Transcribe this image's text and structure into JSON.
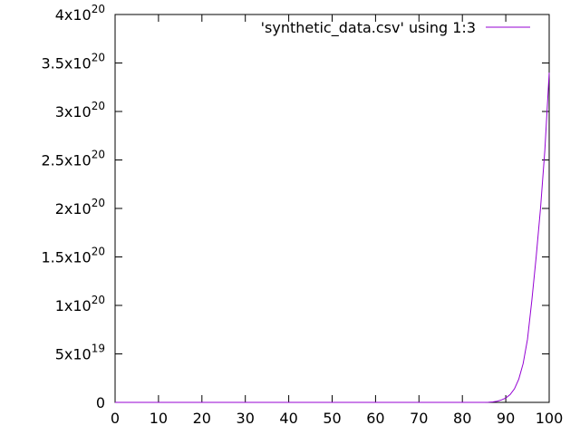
{
  "chart_data": {
    "type": "line",
    "title": "",
    "xlabel": "",
    "ylabel": "",
    "xlim": [
      0,
      100
    ],
    "ylim": [
      0,
      4e+20
    ],
    "x_ticks": [
      {
        "value": 0,
        "label": "0"
      },
      {
        "value": 10,
        "label": "10"
      },
      {
        "value": 20,
        "label": "20"
      },
      {
        "value": 30,
        "label": "30"
      },
      {
        "value": 40,
        "label": "40"
      },
      {
        "value": 50,
        "label": "50"
      },
      {
        "value": 60,
        "label": "60"
      },
      {
        "value": 70,
        "label": "70"
      },
      {
        "value": 80,
        "label": "80"
      },
      {
        "value": 90,
        "label": "90"
      },
      {
        "value": 100,
        "label": "100"
      }
    ],
    "y_ticks": [
      {
        "value": 0,
        "mantissa": "0",
        "exponent": ""
      },
      {
        "value": 5e+19,
        "mantissa": "5x10",
        "exponent": "19"
      },
      {
        "value": 1e+20,
        "mantissa": "1x10",
        "exponent": "20"
      },
      {
        "value": 1.5e+20,
        "mantissa": "1.5x10",
        "exponent": "20"
      },
      {
        "value": 2e+20,
        "mantissa": "2x10",
        "exponent": "20"
      },
      {
        "value": 2.5e+20,
        "mantissa": "2.5x10",
        "exponent": "20"
      },
      {
        "value": 3e+20,
        "mantissa": "3x10",
        "exponent": "20"
      },
      {
        "value": 3.5e+20,
        "mantissa": "3.5x10",
        "exponent": "20"
      },
      {
        "value": 4e+20,
        "mantissa": "4x10",
        "exponent": "20"
      }
    ],
    "grid": false,
    "legend_position": "top-right",
    "series": [
      {
        "name": "'synthetic_data.csv' using 1:3",
        "color": "#9400d3",
        "x": [
          0,
          10,
          20,
          30,
          40,
          50,
          60,
          70,
          80,
          85,
          86,
          87,
          88,
          89,
          90,
          91,
          92,
          93,
          94,
          95,
          96,
          97,
          98,
          99,
          100
        ],
        "y": [
          0,
          0,
          0,
          0,
          0,
          0,
          0,
          0,
          0,
          0,
          1e+17,
          5e+17,
          1.2e+18,
          2.5e+18,
          4.5e+18,
          8e+18,
          1.4e+19,
          2.4e+19,
          4e+19,
          6.5e+19,
          1.05e+20,
          1.5e+20,
          2e+20,
          2.6e+20,
          3.4e+20
        ]
      }
    ]
  }
}
